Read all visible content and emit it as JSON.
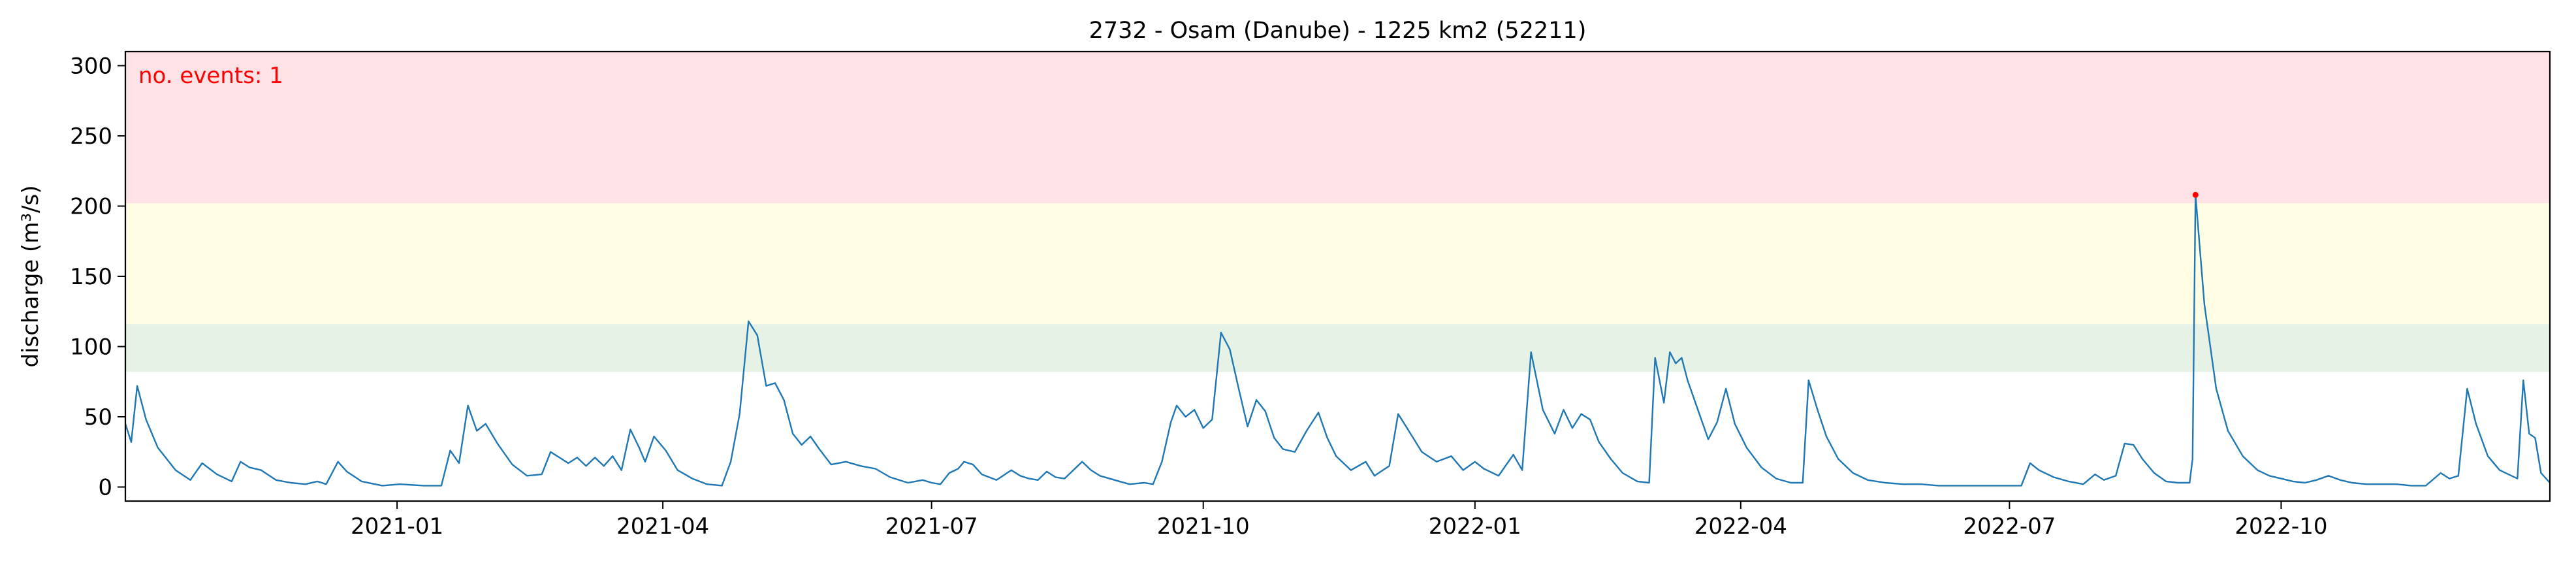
{
  "chart_data": {
    "type": "line",
    "title": "2732 - Osam (Danube) - 1225 km2 (52211)",
    "xlabel": "",
    "ylabel": "discharge (m³/s)",
    "xlim": [
      "2020-10-01",
      "2022-12-31"
    ],
    "ylim": [
      -10,
      310
    ],
    "xticks": [
      "2021-01",
      "2021-04",
      "2021-07",
      "2021-10",
      "2022-01",
      "2022-04",
      "2022-07",
      "2022-10"
    ],
    "yticks": [
      0,
      50,
      100,
      150,
      200,
      250,
      300
    ],
    "grid": false,
    "bands": [
      {
        "name": "green",
        "from": 82,
        "to": 116,
        "color": "#e6f2e6"
      },
      {
        "name": "yellow",
        "from": 116,
        "to": 202,
        "color": "#fefde3"
      },
      {
        "name": "red",
        "from": 202,
        "to": 310,
        "color": "#fee2e5"
      }
    ],
    "line_color": "#1f77b4",
    "event_color": "#ff0000",
    "annotation": "no. events: 1",
    "events": [
      {
        "x": "2022-09-02",
        "y": 208
      }
    ],
    "series": [
      {
        "points": [
          [
            "2020-10-01",
            45
          ],
          [
            "2020-10-03",
            32
          ],
          [
            "2020-10-05",
            72
          ],
          [
            "2020-10-08",
            48
          ],
          [
            "2020-10-12",
            28
          ],
          [
            "2020-10-18",
            12
          ],
          [
            "2020-10-23",
            5
          ],
          [
            "2020-10-27",
            17
          ],
          [
            "2020-11-01",
            9
          ],
          [
            "2020-11-06",
            4
          ],
          [
            "2020-11-09",
            18
          ],
          [
            "2020-11-12",
            14
          ],
          [
            "2020-11-16",
            12
          ],
          [
            "2020-11-21",
            5
          ],
          [
            "2020-11-26",
            3
          ],
          [
            "2020-12-01",
            2
          ],
          [
            "2020-12-05",
            4
          ],
          [
            "2020-12-08",
            2
          ],
          [
            "2020-12-12",
            18
          ],
          [
            "2020-12-15",
            11
          ],
          [
            "2020-12-20",
            4
          ],
          [
            "2020-12-27",
            1
          ],
          [
            "2021-01-02",
            2
          ],
          [
            "2021-01-10",
            1
          ],
          [
            "2021-01-16",
            1
          ],
          [
            "2021-01-19",
            26
          ],
          [
            "2021-01-22",
            17
          ],
          [
            "2021-01-25",
            58
          ],
          [
            "2021-01-28",
            40
          ],
          [
            "2021-01-31",
            45
          ],
          [
            "2021-02-04",
            31
          ],
          [
            "2021-02-09",
            16
          ],
          [
            "2021-02-14",
            8
          ],
          [
            "2021-02-19",
            9
          ],
          [
            "2021-02-22",
            25
          ],
          [
            "2021-02-25",
            21
          ],
          [
            "2021-02-28",
            17
          ],
          [
            "2021-03-03",
            21
          ],
          [
            "2021-03-06",
            15
          ],
          [
            "2021-03-09",
            21
          ],
          [
            "2021-03-12",
            15
          ],
          [
            "2021-03-15",
            22
          ],
          [
            "2021-03-18",
            12
          ],
          [
            "2021-03-21",
            41
          ],
          [
            "2021-03-24",
            28
          ],
          [
            "2021-03-26",
            18
          ],
          [
            "2021-03-29",
            36
          ],
          [
            "2021-04-02",
            26
          ],
          [
            "2021-04-06",
            12
          ],
          [
            "2021-04-11",
            6
          ],
          [
            "2021-04-16",
            2
          ],
          [
            "2021-04-21",
            1
          ],
          [
            "2021-04-24",
            18
          ],
          [
            "2021-04-27",
            52
          ],
          [
            "2021-04-30",
            118
          ],
          [
            "2021-05-03",
            108
          ],
          [
            "2021-05-06",
            72
          ],
          [
            "2021-05-09",
            74
          ],
          [
            "2021-05-12",
            62
          ],
          [
            "2021-05-15",
            38
          ],
          [
            "2021-05-18",
            30
          ],
          [
            "2021-05-21",
            36
          ],
          [
            "2021-05-24",
            27
          ],
          [
            "2021-05-28",
            16
          ],
          [
            "2021-06-02",
            18
          ],
          [
            "2021-06-07",
            15
          ],
          [
            "2021-06-12",
            13
          ],
          [
            "2021-06-17",
            7
          ],
          [
            "2021-06-23",
            3
          ],
          [
            "2021-06-28",
            5
          ],
          [
            "2021-07-01",
            3
          ],
          [
            "2021-07-04",
            2
          ],
          [
            "2021-07-07",
            10
          ],
          [
            "2021-07-10",
            13
          ],
          [
            "2021-07-12",
            18
          ],
          [
            "2021-07-15",
            16
          ],
          [
            "2021-07-18",
            9
          ],
          [
            "2021-07-23",
            5
          ],
          [
            "2021-07-28",
            12
          ],
          [
            "2021-07-31",
            8
          ],
          [
            "2021-08-03",
            6
          ],
          [
            "2021-08-06",
            5
          ],
          [
            "2021-08-09",
            11
          ],
          [
            "2021-08-12",
            7
          ],
          [
            "2021-08-15",
            6
          ],
          [
            "2021-08-18",
            12
          ],
          [
            "2021-08-21",
            18
          ],
          [
            "2021-08-24",
            12
          ],
          [
            "2021-08-27",
            8
          ],
          [
            "2021-09-01",
            5
          ],
          [
            "2021-09-06",
            2
          ],
          [
            "2021-09-11",
            3
          ],
          [
            "2021-09-14",
            2
          ],
          [
            "2021-09-17",
            18
          ],
          [
            "2021-09-20",
            46
          ],
          [
            "2021-09-22",
            58
          ],
          [
            "2021-09-25",
            50
          ],
          [
            "2021-09-28",
            55
          ],
          [
            "2021-10-01",
            42
          ],
          [
            "2021-10-04",
            48
          ],
          [
            "2021-10-07",
            110
          ],
          [
            "2021-10-10",
            98
          ],
          [
            "2021-10-13",
            70
          ],
          [
            "2021-10-16",
            43
          ],
          [
            "2021-10-19",
            62
          ],
          [
            "2021-10-22",
            54
          ],
          [
            "2021-10-25",
            35
          ],
          [
            "2021-10-28",
            27
          ],
          [
            "2021-11-01",
            25
          ],
          [
            "2021-11-05",
            40
          ],
          [
            "2021-11-09",
            53
          ],
          [
            "2021-11-12",
            35
          ],
          [
            "2021-11-15",
            22
          ],
          [
            "2021-11-20",
            12
          ],
          [
            "2021-11-25",
            18
          ],
          [
            "2021-11-28",
            8
          ],
          [
            "2021-12-03",
            15
          ],
          [
            "2021-12-06",
            52
          ],
          [
            "2021-12-09",
            42
          ],
          [
            "2021-12-14",
            25
          ],
          [
            "2021-12-19",
            18
          ],
          [
            "2021-12-24",
            22
          ],
          [
            "2021-12-28",
            12
          ],
          [
            "2022-01-01",
            18
          ],
          [
            "2022-01-04",
            13
          ],
          [
            "2022-01-09",
            8
          ],
          [
            "2022-01-14",
            23
          ],
          [
            "2022-01-17",
            12
          ],
          [
            "2022-01-20",
            96
          ],
          [
            "2022-01-24",
            55
          ],
          [
            "2022-01-28",
            38
          ],
          [
            "2022-01-31",
            55
          ],
          [
            "2022-02-03",
            42
          ],
          [
            "2022-02-06",
            52
          ],
          [
            "2022-02-09",
            48
          ],
          [
            "2022-02-12",
            32
          ],
          [
            "2022-02-16",
            20
          ],
          [
            "2022-02-20",
            10
          ],
          [
            "2022-02-25",
            4
          ],
          [
            "2022-03-01",
            3
          ],
          [
            "2022-03-03",
            92
          ],
          [
            "2022-03-06",
            60
          ],
          [
            "2022-03-08",
            96
          ],
          [
            "2022-03-10",
            88
          ],
          [
            "2022-03-12",
            92
          ],
          [
            "2022-03-14",
            76
          ],
          [
            "2022-03-18",
            52
          ],
          [
            "2022-03-21",
            34
          ],
          [
            "2022-03-24",
            46
          ],
          [
            "2022-03-27",
            70
          ],
          [
            "2022-03-30",
            45
          ],
          [
            "2022-04-03",
            28
          ],
          [
            "2022-04-08",
            14
          ],
          [
            "2022-04-13",
            6
          ],
          [
            "2022-04-18",
            3
          ],
          [
            "2022-04-22",
            3
          ],
          [
            "2022-04-24",
            76
          ],
          [
            "2022-04-27",
            55
          ],
          [
            "2022-04-30",
            36
          ],
          [
            "2022-05-04",
            20
          ],
          [
            "2022-05-09",
            10
          ],
          [
            "2022-05-14",
            5
          ],
          [
            "2022-05-20",
            3
          ],
          [
            "2022-05-26",
            2
          ],
          [
            "2022-06-01",
            2
          ],
          [
            "2022-06-07",
            1
          ],
          [
            "2022-06-13",
            1
          ],
          [
            "2022-06-19",
            1
          ],
          [
            "2022-06-25",
            1
          ],
          [
            "2022-07-01",
            1
          ],
          [
            "2022-07-05",
            1
          ],
          [
            "2022-07-08",
            17
          ],
          [
            "2022-07-11",
            12
          ],
          [
            "2022-07-16",
            7
          ],
          [
            "2022-07-21",
            4
          ],
          [
            "2022-07-26",
            2
          ],
          [
            "2022-07-30",
            9
          ],
          [
            "2022-08-02",
            5
          ],
          [
            "2022-08-06",
            8
          ],
          [
            "2022-08-09",
            31
          ],
          [
            "2022-08-12",
            30
          ],
          [
            "2022-08-15",
            20
          ],
          [
            "2022-08-19",
            10
          ],
          [
            "2022-08-23",
            4
          ],
          [
            "2022-08-27",
            3
          ],
          [
            "2022-08-31",
            3
          ],
          [
            "2022-09-01",
            20
          ],
          [
            "2022-09-02",
            208
          ],
          [
            "2022-09-05",
            130
          ],
          [
            "2022-09-09",
            70
          ],
          [
            "2022-09-13",
            40
          ],
          [
            "2022-09-18",
            22
          ],
          [
            "2022-09-23",
            12
          ],
          [
            "2022-09-27",
            8
          ],
          [
            "2022-10-01",
            6
          ],
          [
            "2022-10-05",
            4
          ],
          [
            "2022-10-09",
            3
          ],
          [
            "2022-10-13",
            5
          ],
          [
            "2022-10-17",
            8
          ],
          [
            "2022-10-21",
            5
          ],
          [
            "2022-10-25",
            3
          ],
          [
            "2022-10-30",
            2
          ],
          [
            "2022-11-04",
            2
          ],
          [
            "2022-11-09",
            2
          ],
          [
            "2022-11-14",
            1
          ],
          [
            "2022-11-19",
            1
          ],
          [
            "2022-11-24",
            10
          ],
          [
            "2022-11-27",
            6
          ],
          [
            "2022-11-30",
            8
          ],
          [
            "2022-12-03",
            70
          ],
          [
            "2022-12-06",
            45
          ],
          [
            "2022-12-10",
            22
          ],
          [
            "2022-12-14",
            12
          ],
          [
            "2022-12-18",
            8
          ],
          [
            "2022-12-20",
            6
          ],
          [
            "2022-12-22",
            76
          ],
          [
            "2022-12-24",
            38
          ],
          [
            "2022-12-26",
            35
          ],
          [
            "2022-12-28",
            10
          ],
          [
            "2022-12-31",
            3
          ]
        ]
      }
    ]
  }
}
